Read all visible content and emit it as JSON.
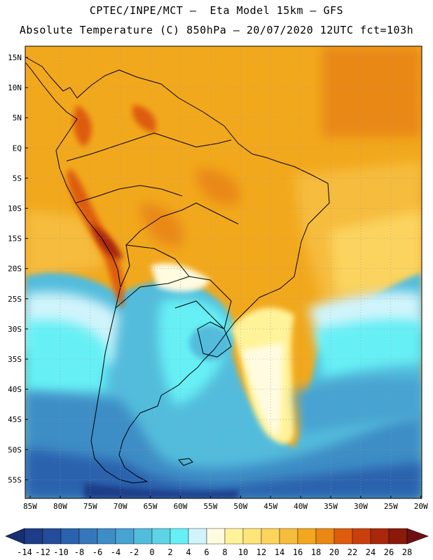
{
  "header": {
    "line1": "CPTEC/INPE/MCT —  Eta Model 15km — GFS",
    "line2": "Absolute Temperature (C) 850hPa — 20/07/2020 12UTC fct=103h"
  },
  "map": {
    "lat_labels": [
      "15N",
      "10N",
      "5N",
      "EQ",
      "5S",
      "10S",
      "15S",
      "20S",
      "25S",
      "30S",
      "35S",
      "40S",
      "45S",
      "50S",
      "55S"
    ],
    "lon_labels": [
      "85W",
      "80W",
      "75W",
      "70W",
      "65W",
      "60W",
      "55W",
      "50W",
      "45W",
      "40W",
      "35W",
      "30W",
      "25W",
      "20W"
    ],
    "grid": "dotted"
  },
  "colorbar": {
    "labels": [
      "-14",
      "-12",
      "-10",
      "-8",
      "-6",
      "-4",
      "-2",
      "0",
      "2",
      "4",
      "6",
      "8",
      "10",
      "12",
      "14",
      "16",
      "18",
      "20",
      "22",
      "24",
      "26",
      "28"
    ],
    "colors": [
      "#1f3c88",
      "#244c9a",
      "#2b62ad",
      "#3577bb",
      "#3e8dc6",
      "#47a3d1",
      "#52bcdc",
      "#5dd3e6",
      "#66f0f5",
      "#d0f4fb",
      "#fffbe0",
      "#fff39a",
      "#fde57a",
      "#fbd45e",
      "#f6bc3c",
      "#f2a81c",
      "#ea8814",
      "#de5c0e",
      "#c9400c",
      "#a8280a",
      "#8a1a0a"
    ],
    "under_color": "#163073",
    "over_color": "#6e0f14"
  }
}
